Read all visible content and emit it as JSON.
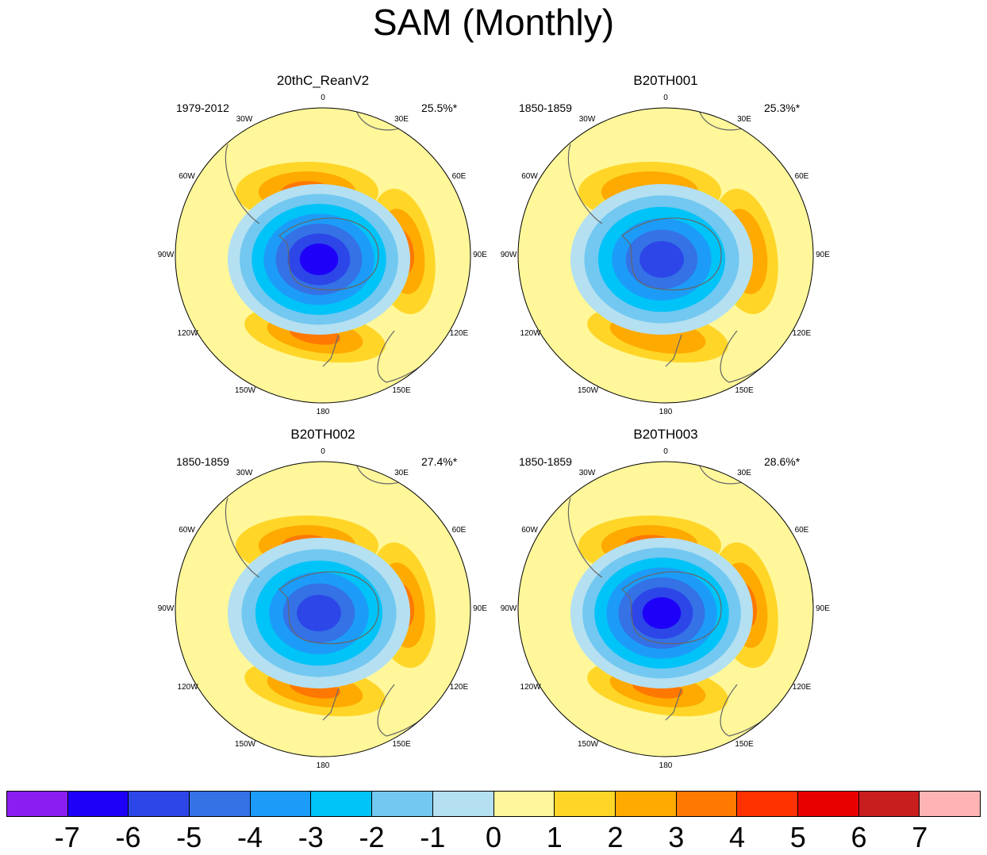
{
  "title": "SAM (Monthly)",
  "map_labels": {
    "lon_0": "0",
    "lon_30e": "30E",
    "lon_60e": "60E",
    "lon_90e": "90E",
    "lon_120e": "120E",
    "lon_150e": "150E",
    "lon_180": "180",
    "lon_150w": "150W",
    "lon_120w": "120W",
    "lon_90w": "90W",
    "lon_60w": "60W",
    "lon_30w": "30W"
  },
  "panels": [
    {
      "name": "20thC_ReanV2",
      "period": "1979-2012",
      "variance": "25.5%*",
      "min_level": -6,
      "max_level": 3
    },
    {
      "name": "B20TH001",
      "period": "1850-1859",
      "variance": "25.3%*",
      "min_level": -5,
      "max_level": 2
    },
    {
      "name": "B20TH002",
      "period": "1850-1859",
      "variance": "27.4%*",
      "min_level": -5,
      "max_level": 3
    },
    {
      "name": "B20TH003",
      "period": "1850-1859",
      "variance": "28.6%*",
      "min_level": -6,
      "max_level": 3
    }
  ],
  "colorbar": {
    "ticks": [
      "-7",
      "-6",
      "-5",
      "-4",
      "-3",
      "-2",
      "-1",
      "0",
      "1",
      "2",
      "3",
      "4",
      "5",
      "6",
      "7"
    ],
    "colors": [
      "#8a1ef0",
      "#1e00f8",
      "#2c46e8",
      "#3472e6",
      "#1c9cf8",
      "#00c3f8",
      "#72c8f0",
      "#b4e0f2",
      "#fff79a",
      "#ffd628",
      "#ffaa00",
      "#ff7800",
      "#ff3200",
      "#e80000",
      "#c81e1e",
      "#ffb4b4"
    ]
  }
}
